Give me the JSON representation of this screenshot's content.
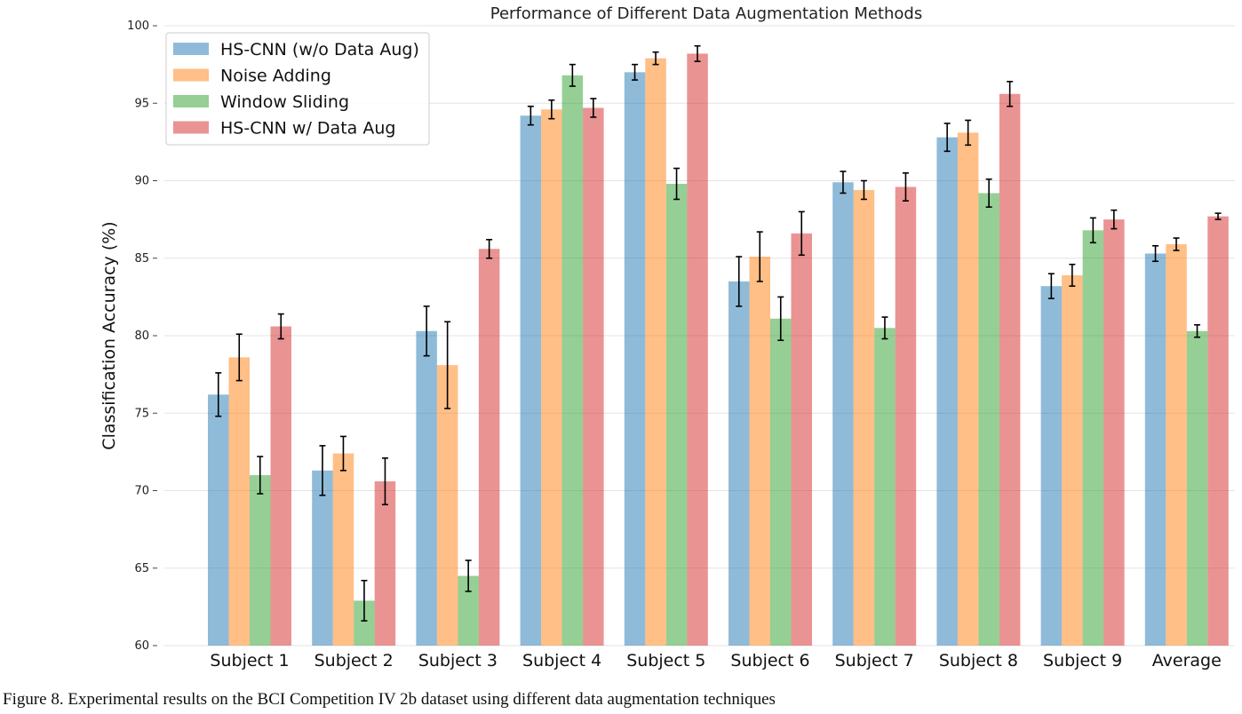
{
  "chart_data": {
    "type": "bar",
    "title": "Performance of Different Data Augmentation Methods",
    "xlabel": "",
    "ylabel": "Classification Accuracy (%)",
    "ylim": [
      60,
      100
    ],
    "yticks": [
      60,
      65,
      70,
      75,
      80,
      85,
      90,
      95,
      100
    ],
    "grid": "horizontal",
    "legend_position": "top-left",
    "categories": [
      "Subject 1",
      "Subject 2",
      "Subject 3",
      "Subject 4",
      "Subject 5",
      "Subject 6",
      "Subject 7",
      "Subject 8",
      "Subject 9",
      "Average"
    ],
    "series": [
      {
        "name": "HS-CNN (w/o Data Aug)",
        "color": "#1f77b4",
        "values": [
          76.2,
          71.3,
          80.3,
          94.2,
          97.0,
          83.5,
          89.9,
          92.8,
          83.2,
          85.3
        ],
        "errors": [
          1.4,
          1.6,
          1.6,
          0.6,
          0.5,
          1.6,
          0.7,
          0.9,
          0.8,
          0.5
        ]
      },
      {
        "name": "Noise Adding",
        "color": "#ff7f0e",
        "values": [
          78.6,
          72.4,
          78.1,
          94.6,
          97.9,
          85.1,
          89.4,
          93.1,
          83.9,
          85.9
        ],
        "errors": [
          1.5,
          1.1,
          2.8,
          0.6,
          0.4,
          1.6,
          0.6,
          0.8,
          0.7,
          0.4
        ]
      },
      {
        "name": "Window Sliding",
        "color": "#2ca02c",
        "values": [
          71.0,
          62.9,
          64.5,
          96.8,
          89.8,
          81.1,
          80.5,
          89.2,
          86.8,
          80.3
        ],
        "errors": [
          1.2,
          1.3,
          1.0,
          0.7,
          1.0,
          1.4,
          0.7,
          0.9,
          0.8,
          0.4
        ]
      },
      {
        "name": "HS-CNN w/ Data Aug",
        "color": "#d62728",
        "values": [
          80.6,
          70.6,
          85.6,
          94.7,
          98.2,
          86.6,
          89.6,
          95.6,
          87.5,
          87.7
        ],
        "errors": [
          0.8,
          1.5,
          0.6,
          0.6,
          0.5,
          1.4,
          0.9,
          0.8,
          0.6,
          0.2
        ]
      }
    ]
  },
  "caption": "Figure 8.  Experimental results on the BCI Competition IV 2b dataset using different data augmentation techniques"
}
